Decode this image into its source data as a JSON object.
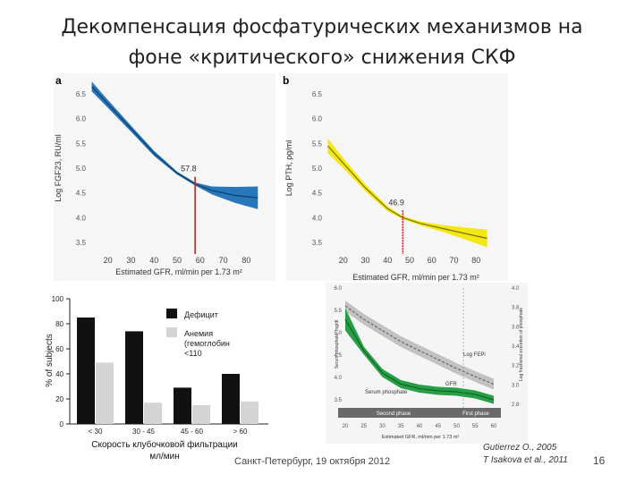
{
  "slide": {
    "title_line1": "Декомпенсация фосфатурических механизмов на",
    "title_line2": "фоне «критического» снижения СКФ",
    "footer_text": "Санкт-Петербург, 19 октября 2012",
    "citation_line1": "Gutierrez O., 2005",
    "citation_line2": "T Isakova et al., 2011",
    "page_number": "16"
  },
  "chart_data": [
    {
      "type": "line",
      "panel_label": "a",
      "ylabel": "Log FGF23, RU/ml",
      "xlabel": "Estimated GFR, ml/min per 1.73 m²",
      "xticks": [
        20,
        30,
        40,
        50,
        60,
        70,
        80
      ],
      "yticks": [
        3.5,
        4.0,
        4.5,
        5.0,
        5.5,
        6.0,
        6.5
      ],
      "xlim": [
        12,
        88
      ],
      "ylim": [
        3.3,
        6.7
      ],
      "annotation": "57.8",
      "annotation_x": 57.8,
      "series": [
        {
          "values_x": [
            13,
            20,
            30,
            40,
            50,
            57.8,
            65,
            75,
            85
          ],
          "values_y": [
            6.65,
            6.3,
            5.8,
            5.3,
            4.9,
            4.68,
            4.55,
            4.45,
            4.4
          ],
          "band_low": [
            6.55,
            6.22,
            5.74,
            5.25,
            4.87,
            4.65,
            4.47,
            4.3,
            4.17
          ],
          "band_high": [
            6.75,
            6.38,
            5.86,
            5.35,
            4.93,
            4.71,
            4.63,
            4.62,
            4.63
          ],
          "color": "#1e6fb5"
        }
      ]
    },
    {
      "type": "line",
      "panel_label": "b",
      "ylabel": "Log PTH, pg/ml",
      "xlabel": "Estimated GFR, ml/min per 1.73 m²",
      "xticks": [
        20,
        30,
        40,
        50,
        60,
        70,
        80
      ],
      "yticks": [
        3.5,
        4.0,
        4.5,
        5.0,
        5.5,
        6.0,
        6.5
      ],
      "xlim": [
        12,
        88
      ],
      "ylim": [
        3.3,
        6.7
      ],
      "annotation": "46.9",
      "annotation_x": 46.9,
      "series": [
        {
          "values_x": [
            13,
            20,
            30,
            40,
            46.9,
            55,
            65,
            75,
            85
          ],
          "values_y": [
            5.45,
            5.1,
            4.6,
            4.18,
            4.0,
            3.88,
            3.78,
            3.68,
            3.58
          ],
          "band_low": [
            5.3,
            5.0,
            4.53,
            4.13,
            3.97,
            3.84,
            3.71,
            3.56,
            3.4
          ],
          "band_high": [
            5.6,
            5.2,
            4.67,
            4.23,
            4.03,
            3.92,
            3.85,
            3.8,
            3.76
          ],
          "color": "#f2e60a"
        }
      ]
    },
    {
      "type": "bar",
      "ylabel": "% of subjects",
      "xlabel_line1": "Скорость клубочковой фильтрации",
      "xlabel_line2": "мл/мин",
      "categories": [
        "< 30",
        "30 - 45",
        "45 - 60",
        "> 60"
      ],
      "yticks": [
        0,
        20,
        40,
        60,
        80,
        100
      ],
      "ylim": [
        0,
        100
      ],
      "series": [
        {
          "name": "Дефицит",
          "values": [
            85,
            74,
            29,
            40
          ],
          "color": "#111111"
        },
        {
          "name": "Анемия (гемоглобин <110",
          "values": [
            49,
            17,
            15,
            18
          ],
          "color": "#d4d4d4"
        }
      ],
      "legend_line1": "Дефицит",
      "legend_line2a": "Анемия",
      "legend_line2b": "(гемоглобин",
      "legend_line2c": "<110"
    },
    {
      "type": "line",
      "ylabel_left": "Serum phosphate, mg/dl",
      "ylabel_right": "Log fractional excretion of phosphate",
      "xlabel": "Estimated GFR, ml/min per 1.73 m²",
      "xticks": [
        20,
        25,
        30,
        35,
        40,
        45,
        50,
        55,
        60
      ],
      "yticks_left": [
        3.5,
        4.0,
        4.5,
        5.0,
        5.5,
        6.0
      ],
      "yticks_right": [
        2.8,
        3.0,
        3.2,
        3.4,
        3.6,
        3.8,
        4.0
      ],
      "annotation": "GFR",
      "phase_labels": [
        "Second phase",
        "First phase"
      ],
      "series": [
        {
          "name": "Log FEPi",
          "color": "#9a9a9a",
          "values_x": [
            20,
            25,
            30,
            35,
            40,
            45,
            50,
            55,
            60
          ],
          "values_y": [
            5.6,
            5.3,
            5.05,
            4.8,
            4.6,
            4.4,
            4.2,
            4.02,
            3.85
          ]
        },
        {
          "name": "Serum phosphate",
          "color": "#1c9a3c",
          "values_x": [
            20,
            25,
            30,
            35,
            40,
            45,
            50,
            55,
            60
          ],
          "values_y": [
            5.3,
            4.6,
            4.1,
            3.85,
            3.75,
            3.7,
            3.68,
            3.62,
            3.5
          ]
        }
      ]
    }
  ]
}
